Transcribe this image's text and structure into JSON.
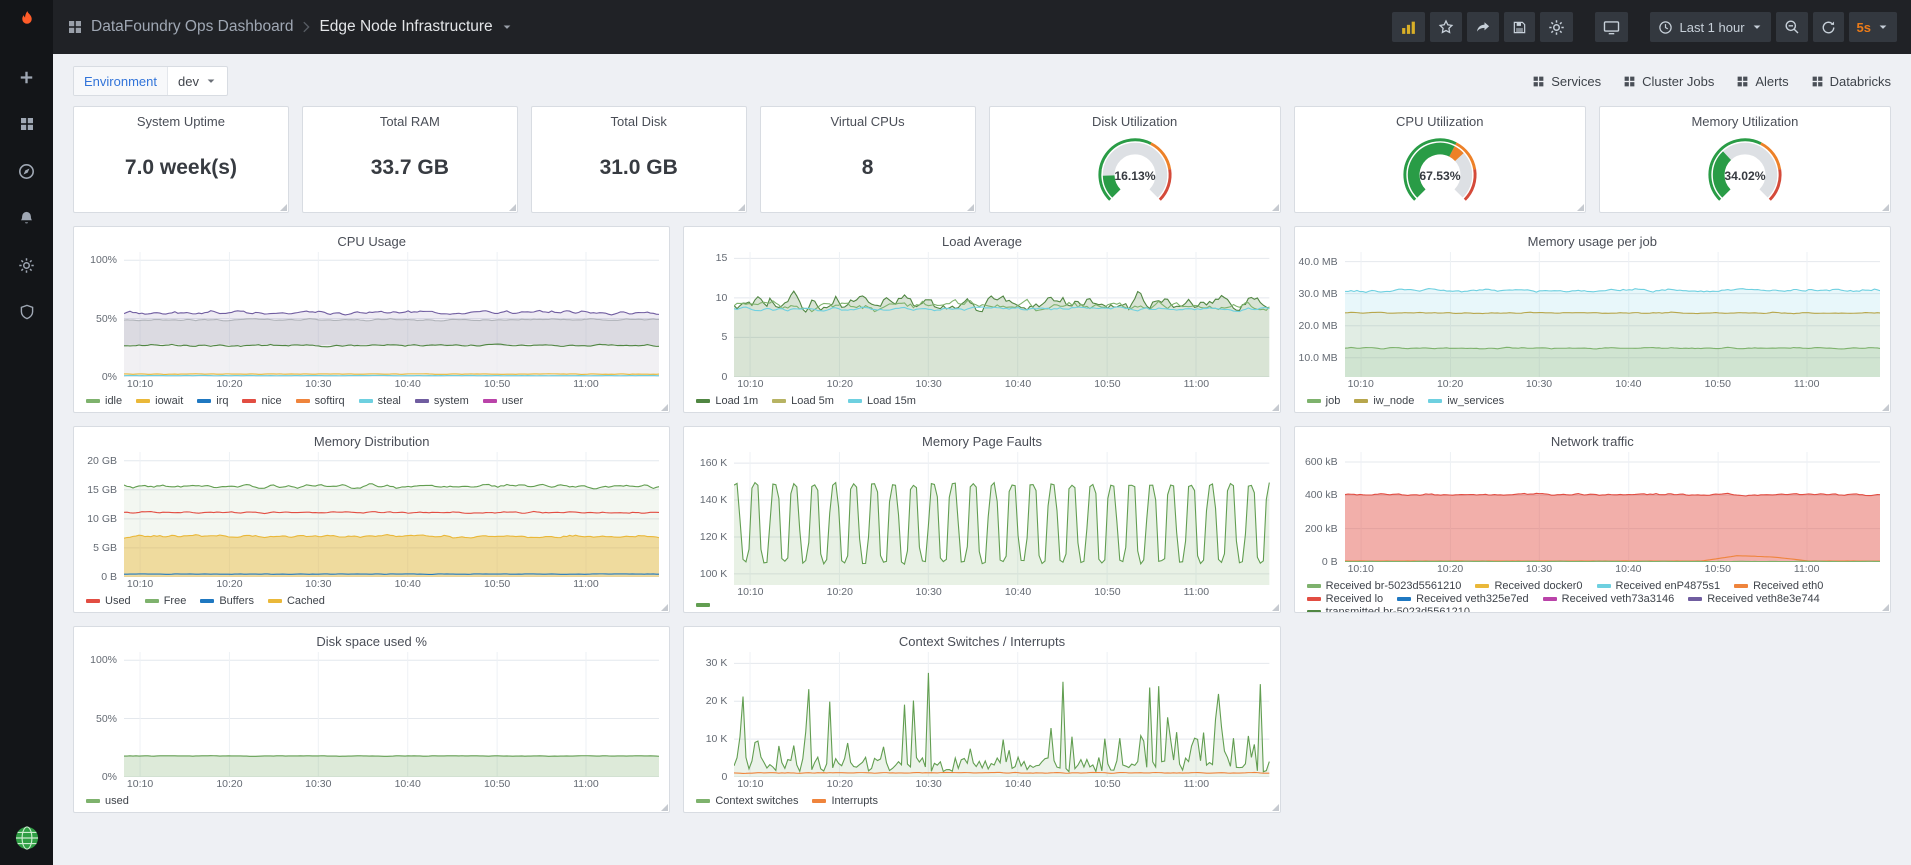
{
  "colors": {
    "accent_orange": "#eb7b18",
    "link_blue": "#3274d9",
    "threshold_green": "#299c46",
    "threshold_orange": "#ed8128",
    "threshold_red": "#d44a3a"
  },
  "sidebar": {
    "items": [
      {
        "name": "create",
        "icon": "plus",
        "icon_name": "plus-icon"
      },
      {
        "name": "dashboards",
        "icon": "grid",
        "icon_name": "dashboards-icon"
      },
      {
        "name": "explore",
        "icon": "compass",
        "icon_name": "compass-icon"
      },
      {
        "name": "alerting",
        "icon": "bell",
        "icon_name": "bell-icon"
      },
      {
        "name": "configuration",
        "icon": "gear",
        "icon_name": "gear-icon"
      },
      {
        "name": "server-admin",
        "icon": "shield",
        "icon_name": "shield-icon"
      }
    ]
  },
  "topbar": {
    "breadcrumb": {
      "dashboard": "DataFoundry Ops Dashboard",
      "page": "Edge Node Infrastructure"
    },
    "actions": [
      {
        "name": "add-panel",
        "icon": "baradd",
        "icon_name": "add-panel-icon"
      },
      {
        "name": "star",
        "icon": "star",
        "icon_name": "star-icon"
      },
      {
        "name": "share",
        "icon": "share",
        "icon_name": "share-icon"
      },
      {
        "name": "save",
        "icon": "save",
        "icon_name": "save-icon"
      },
      {
        "name": "dashboard-settings",
        "icon": "gear",
        "icon_name": "gear-icon"
      },
      {
        "gap": true
      },
      {
        "name": "cycle-view",
        "icon": "monitor",
        "icon_name": "monitor-icon"
      },
      {
        "gap": true
      },
      {
        "name": "time-range",
        "icon": "clock",
        "icon_name": "clock-icon",
        "label": "Last 1 hour",
        "caret": true
      },
      {
        "name": "zoom-out",
        "icon": "zoomout",
        "icon_name": "zoom-out-icon"
      },
      {
        "name": "refresh",
        "icon": "refresh",
        "icon_name": "refresh-icon"
      },
      {
        "name": "refresh-interval",
        "label": "5s",
        "caret": true,
        "accent": true
      }
    ]
  },
  "subbar": {
    "environment_label": "Environment",
    "environment_value": "dev",
    "links": [
      {
        "label": "Services"
      },
      {
        "label": "Cluster Jobs"
      },
      {
        "label": "Alerts"
      },
      {
        "label": "Databricks"
      }
    ]
  },
  "stat_panels": [
    {
      "title": "System Uptime",
      "value": "7.0 week(s)"
    },
    {
      "title": "Total RAM",
      "value": "33.7 GB"
    },
    {
      "title": "Total Disk",
      "value": "31.0 GB"
    },
    {
      "title": "Virtual CPUs",
      "value": "8"
    }
  ],
  "gauge_panels": [
    {
      "title": "Disk Utilization",
      "value": 16.13,
      "display": "16.13%"
    },
    {
      "title": "CPU Utilization",
      "value": 67.53,
      "display": "67.53%"
    },
    {
      "title": "Memory Utilization",
      "value": 34.02,
      "display": "34.02%"
    }
  ],
  "x_ticks": [
    {
      "label": "10:10",
      "f": 0.03
    },
    {
      "label": "10:20",
      "f": 0.197
    },
    {
      "label": "10:30",
      "f": 0.363
    },
    {
      "label": "10:40",
      "f": 0.53
    },
    {
      "label": "10:50",
      "f": 0.697
    },
    {
      "label": "11:00",
      "f": 0.863
    }
  ],
  "charts": [
    {
      "title": "CPU Usage",
      "y_range": [
        0,
        107
      ],
      "y_ticks": [
        {
          "label": "0%",
          "v": 0
        },
        {
          "label": "50%",
          "v": 50
        },
        {
          "label": "100%",
          "v": 100
        }
      ],
      "legend": [
        {
          "label": "idle",
          "color": "#7eb26d"
        },
        {
          "label": "iowait",
          "color": "#eab839"
        },
        {
          "label": "irq",
          "color": "#1f78c1"
        },
        {
          "label": "nice",
          "color": "#e24d42"
        },
        {
          "label": "softirq",
          "color": "#ef843c"
        },
        {
          "label": "steal",
          "color": "#6ed0e0"
        },
        {
          "label": "system",
          "color": "#705da0"
        },
        {
          "label": "user",
          "color": "#ba43a9"
        }
      ],
      "series": [
        {
          "color": "#705da0",
          "base": 55,
          "jitter": 2,
          "fill": 0.12
        },
        {
          "color": "#b0b3b9",
          "base": 49,
          "jitter": 1,
          "fill": 0.3
        },
        {
          "color": "#ffffff",
          "base": 27.2,
          "jitter": 1.2,
          "fill": 0.6,
          "nostroke": true
        },
        {
          "color": "#508642",
          "base": 27,
          "jitter": 1.2
        },
        {
          "color": "#eab839",
          "base": 2.5,
          "jitter": 0.3
        },
        {
          "color": "#6ed0e0",
          "base": 1.2,
          "jitter": 0.2
        }
      ]
    },
    {
      "title": "Load Average",
      "y_range": [
        0,
        15.8
      ],
      "y_ticks": [
        {
          "label": "0",
          "v": 0
        },
        {
          "label": "5",
          "v": 5
        },
        {
          "label": "10",
          "v": 10
        },
        {
          "label": "15",
          "v": 15
        }
      ],
      "legend": [
        {
          "label": "Load 1m",
          "color": "#508642"
        },
        {
          "label": "Load 5m",
          "color": "#b7b363"
        },
        {
          "label": "Load 15m",
          "color": "#6ed0e0"
        }
      ],
      "series": [
        {
          "color": "#508642",
          "base": 9.3,
          "jitter": 1.6,
          "fill": 0.22
        },
        {
          "color": "#7eb26d",
          "base": 9.0,
          "jitter": 0.8
        },
        {
          "color": "#6ed0e0",
          "base": 8.6,
          "jitter": 0.35
        }
      ]
    },
    {
      "title": "Memory usage per job",
      "y_range": [
        4,
        43
      ],
      "y_ticks": [
        {
          "label": "10.0 MB",
          "v": 10
        },
        {
          "label": "20.0 MB",
          "v": 20
        },
        {
          "label": "30.0 MB",
          "v": 30
        },
        {
          "label": "40.0 MB",
          "v": 40
        }
      ],
      "legend": [
        {
          "label": "job",
          "color": "#7eb26d"
        },
        {
          "label": "iw_node",
          "color": "#b7a64c"
        },
        {
          "label": "iw_services",
          "color": "#6ed0e0"
        }
      ],
      "series": [
        {
          "color": "#6ed0e0",
          "base": 31,
          "jitter": 0.7,
          "fill": 0.16
        },
        {
          "color": "#b7a64c",
          "base": 24,
          "jitter": 0.25,
          "fill": 0.12
        },
        {
          "color": "#7eb26d",
          "base": 13,
          "jitter": 0.3,
          "fill": 0.16
        }
      ]
    },
    {
      "title": "Memory Distribution",
      "y_range": [
        0,
        21.5
      ],
      "y_ticks": [
        {
          "label": "0 B",
          "v": 0
        },
        {
          "label": "5 GB",
          "v": 5
        },
        {
          "label": "10 GB",
          "v": 10
        },
        {
          "label": "15 GB",
          "v": 15
        },
        {
          "label": "20 GB",
          "v": 20
        }
      ],
      "legend": [
        {
          "label": "Used",
          "color": "#e24d42"
        },
        {
          "label": "Free",
          "color": "#7eb26d"
        },
        {
          "label": "Buffers",
          "color": "#1f78c1"
        },
        {
          "label": "Cached",
          "color": "#eab839"
        }
      ],
      "series": [
        {
          "color": "#629e51",
          "base": 15.6,
          "jitter": 0.45,
          "fill": 0.08
        },
        {
          "color": "#e24d42",
          "base": 11.1,
          "jitter": 0.2
        },
        {
          "color": "#eab839",
          "base": 7.0,
          "jitter": 0.35,
          "fill": 0.45
        },
        {
          "color": "#1f78c1",
          "base": 0.5,
          "jitter": 0.05
        }
      ]
    },
    {
      "title": "Memory Page Faults",
      "y_range": [
        94,
        166
      ],
      "y_ticks": [
        {
          "label": "100 K",
          "v": 100
        },
        {
          "label": "120 K",
          "v": 120
        },
        {
          "label": "140 K",
          "v": 140
        },
        {
          "label": "160 K",
          "v": 160
        }
      ],
      "legend": [
        {
          "label": "",
          "color": "#629e51"
        }
      ],
      "series": [
        {
          "color": "#629e51",
          "pattern": "wave",
          "min": 106,
          "max": 149,
          "cycles": 27,
          "fill": 0.15
        }
      ]
    },
    {
      "title": "Network traffic",
      "y_range": [
        0,
        660
      ],
      "y_ticks": [
        {
          "label": "0 B",
          "v": 0
        },
        {
          "label": "200 kB",
          "v": 200
        },
        {
          "label": "400 kB",
          "v": 400
        },
        {
          "label": "600 kB",
          "v": 600
        }
      ],
      "legend": [
        {
          "label": "Received br-5023d5561210",
          "color": "#7eb26d"
        },
        {
          "label": "Received docker0",
          "color": "#eab839"
        },
        {
          "label": "Received enP4875s1",
          "color": "#6ed0e0"
        },
        {
          "label": "Received eth0",
          "color": "#ef843c"
        },
        {
          "label": "Received lo",
          "color": "#e24d42"
        },
        {
          "label": "Received veth325e7ed",
          "color": "#1f78c1"
        },
        {
          "label": "Received veth73a3146",
          "color": "#ba43a9"
        },
        {
          "label": "Received veth8e3e744",
          "color": "#705da0"
        },
        {
          "label": "transmitted br-5023d5561210",
          "color": "#508642"
        }
      ],
      "series": [
        {
          "color": "#e24d42",
          "base": 405,
          "jitter": 9,
          "fill": 0.45
        },
        {
          "color": "#ef843c",
          "pattern": "data",
          "values": [
            6,
            6,
            6,
            6,
            6,
            6,
            6,
            6,
            6,
            6,
            6,
            38,
            30,
            6,
            6,
            6
          ],
          "jitter": 2
        },
        {
          "color": "#7eb26d",
          "base": 3,
          "jitter": 1.5
        }
      ]
    },
    {
      "title": "Disk space used %",
      "y_range": [
        0,
        107
      ],
      "y_ticks": [
        {
          "label": "0%",
          "v": 0
        },
        {
          "label": "50%",
          "v": 50
        },
        {
          "label": "100%",
          "v": 100
        }
      ],
      "legend": [
        {
          "label": "used",
          "color": "#7eb26d"
        }
      ],
      "series": [
        {
          "color": "#629e51",
          "base": 18,
          "jitter": 0.3,
          "fill": 0.22
        }
      ]
    },
    {
      "title": "Context Switches / Interrupts",
      "y_range": [
        0,
        33
      ],
      "y_ticks": [
        {
          "label": "0",
          "v": 0
        },
        {
          "label": "10 K",
          "v": 10
        },
        {
          "label": "20 K",
          "v": 20
        },
        {
          "label": "30 K",
          "v": 30
        }
      ],
      "legend": [
        {
          "label": "Context switches",
          "color": "#7eb26d"
        },
        {
          "label": "Interrupts",
          "color": "#ef843c"
        }
      ],
      "series": [
        {
          "color": "#629e51",
          "pattern": "spikes",
          "base": 3.5,
          "max": 28,
          "fill": 0.12
        },
        {
          "color": "#ef843c",
          "base": 1.1,
          "jitter": 0.15
        }
      ]
    }
  ]
}
